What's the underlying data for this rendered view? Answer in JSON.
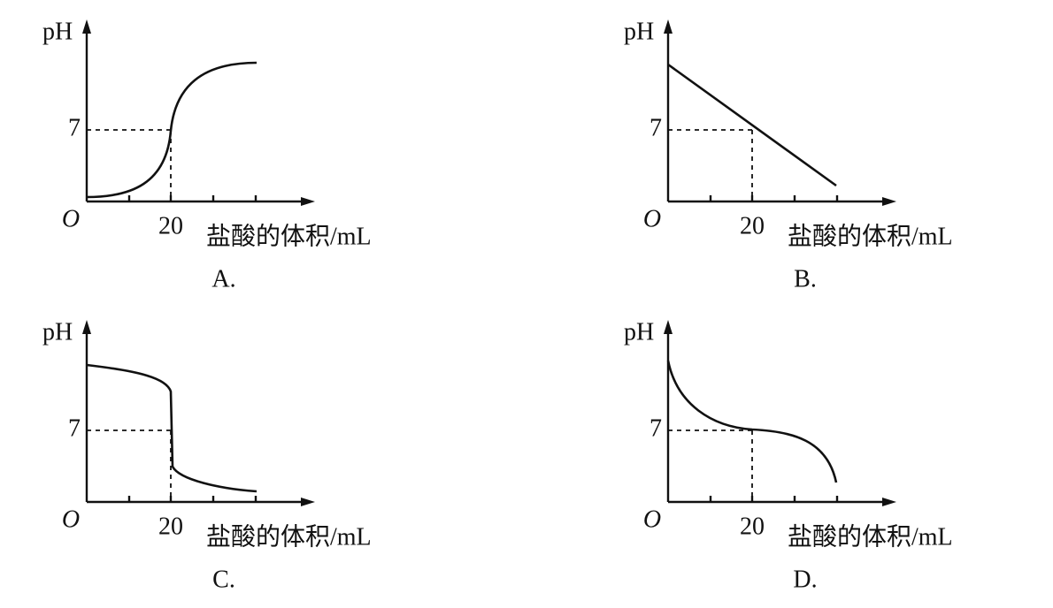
{
  "panels": [
    {
      "label": "A.",
      "y_label": "pH",
      "y_tick": "7",
      "origin": "O",
      "x_tick": "20",
      "x_label": "盐酸的体积/mL"
    },
    {
      "label": "B.",
      "y_label": "pH",
      "y_tick": "7",
      "origin": "O",
      "x_tick": "20",
      "x_label": "盐酸的体积/mL"
    },
    {
      "label": "C.",
      "y_label": "pH",
      "y_tick": "7",
      "origin": "O",
      "x_tick": "20",
      "x_label": "盐酸的体积/mL"
    },
    {
      "label": "D.",
      "y_label": "pH",
      "y_tick": "7",
      "origin": "O",
      "x_tick": "20",
      "x_label": "盐酸的体积/mL"
    }
  ]
}
